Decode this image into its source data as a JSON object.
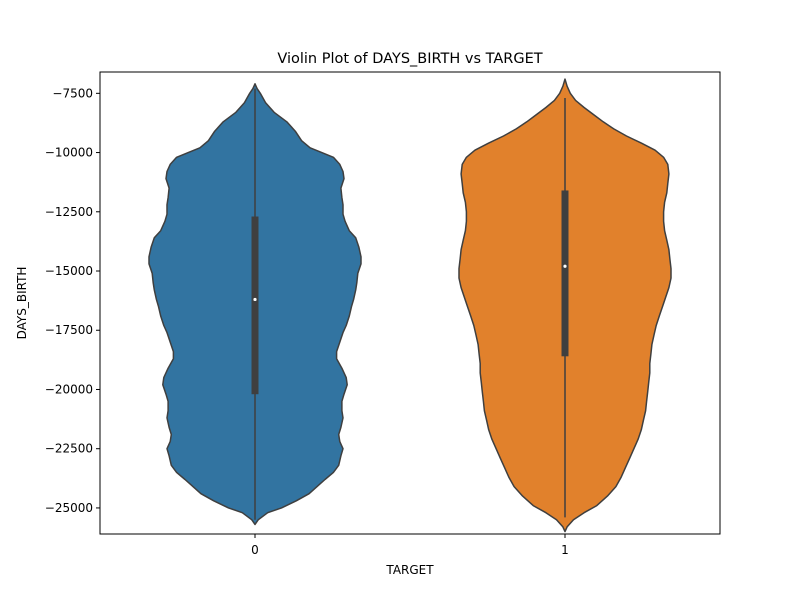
{
  "chart_data": {
    "type": "violin",
    "title": "Violin Plot of DAYS_BIRTH vs TARGET",
    "xlabel": "TARGET",
    "ylabel": "DAYS_BIRTH",
    "categories": [
      "0",
      "1"
    ],
    "ylim": [
      -26100,
      -6600
    ],
    "yticks": [
      -7500,
      -10000,
      -12500,
      -15000,
      -17500,
      -20000,
      -22500,
      -25000
    ],
    "ytick_labels": [
      "−7500",
      "−10000",
      "−12500",
      "−15000",
      "−17500",
      "−20000",
      "−22500",
      "−25000"
    ],
    "grid": false,
    "legend": false,
    "series": [
      {
        "category": "0",
        "color": "#3274a1",
        "min": -25500,
        "max": -7300,
        "q1": -20200,
        "median": -16200,
        "q3": -12700,
        "density": [
          [
            -25700,
            0.0
          ],
          [
            -25500,
            0.03
          ],
          [
            -25200,
            0.12
          ],
          [
            -25000,
            0.25
          ],
          [
            -24700,
            0.39
          ],
          [
            -24400,
            0.51
          ],
          [
            -24000,
            0.61
          ],
          [
            -23800,
            0.66
          ],
          [
            -23500,
            0.74
          ],
          [
            -23200,
            0.79
          ],
          [
            -22800,
            0.81
          ],
          [
            -22500,
            0.83
          ],
          [
            -22200,
            0.8
          ],
          [
            -21900,
            0.79
          ],
          [
            -21600,
            0.81
          ],
          [
            -21200,
            0.83
          ],
          [
            -20900,
            0.82
          ],
          [
            -20500,
            0.82
          ],
          [
            -20200,
            0.84
          ],
          [
            -19800,
            0.87
          ],
          [
            -19500,
            0.86
          ],
          [
            -19100,
            0.82
          ],
          [
            -18700,
            0.77
          ],
          [
            -18400,
            0.77
          ],
          [
            -18000,
            0.8
          ],
          [
            -17600,
            0.83
          ],
          [
            -17300,
            0.86
          ],
          [
            -16900,
            0.89
          ],
          [
            -16500,
            0.91
          ],
          [
            -16200,
            0.93
          ],
          [
            -15800,
            0.95
          ],
          [
            -15500,
            0.96
          ],
          [
            -15100,
            0.97
          ],
          [
            -14700,
            1.0
          ],
          [
            -14400,
            1.0
          ],
          [
            -14000,
            0.98
          ],
          [
            -13600,
            0.95
          ],
          [
            -13300,
            0.89
          ],
          [
            -12900,
            0.85
          ],
          [
            -12600,
            0.83
          ],
          [
            -12200,
            0.83
          ],
          [
            -11900,
            0.82
          ],
          [
            -11500,
            0.81
          ],
          [
            -11100,
            0.84
          ],
          [
            -10800,
            0.83
          ],
          [
            -10500,
            0.8
          ],
          [
            -10200,
            0.74
          ],
          [
            -10000,
            0.63
          ],
          [
            -9800,
            0.52
          ],
          [
            -9500,
            0.44
          ],
          [
            -9100,
            0.38
          ],
          [
            -8700,
            0.3
          ],
          [
            -8300,
            0.18
          ],
          [
            -7900,
            0.1
          ],
          [
            -7500,
            0.05
          ],
          [
            -7300,
            0.02
          ],
          [
            -7100,
            0.0
          ]
        ]
      },
      {
        "category": "1",
        "color": "#e1812c",
        "min": -25400,
        "max": -7700,
        "q1": -18600,
        "median": -14800,
        "q3": -11600,
        "density": [
          [
            -26000,
            0.0
          ],
          [
            -25800,
            0.02
          ],
          [
            -25500,
            0.08
          ],
          [
            -25200,
            0.18
          ],
          [
            -24900,
            0.3
          ],
          [
            -24500,
            0.4
          ],
          [
            -24100,
            0.48
          ],
          [
            -23700,
            0.53
          ],
          [
            -23300,
            0.57
          ],
          [
            -22900,
            0.61
          ],
          [
            -22500,
            0.65
          ],
          [
            -22100,
            0.69
          ],
          [
            -21700,
            0.72
          ],
          [
            -21300,
            0.74
          ],
          [
            -20900,
            0.76
          ],
          [
            -20500,
            0.77
          ],
          [
            -20100,
            0.78
          ],
          [
            -19700,
            0.79
          ],
          [
            -19300,
            0.8
          ],
          [
            -18900,
            0.8
          ],
          [
            -18500,
            0.81
          ],
          [
            -18100,
            0.82
          ],
          [
            -17700,
            0.84
          ],
          [
            -17300,
            0.86
          ],
          [
            -16900,
            0.89
          ],
          [
            -16500,
            0.92
          ],
          [
            -16100,
            0.95
          ],
          [
            -15700,
            0.98
          ],
          [
            -15300,
            1.0
          ],
          [
            -14900,
            1.0
          ],
          [
            -14500,
            0.99
          ],
          [
            -14100,
            0.98
          ],
          [
            -13700,
            0.96
          ],
          [
            -13300,
            0.94
          ],
          [
            -12900,
            0.93
          ],
          [
            -12500,
            0.93
          ],
          [
            -12100,
            0.94
          ],
          [
            -11700,
            0.96
          ],
          [
            -11300,
            0.97
          ],
          [
            -10900,
            0.98
          ],
          [
            -10500,
            0.97
          ],
          [
            -10200,
            0.93
          ],
          [
            -9900,
            0.85
          ],
          [
            -9600,
            0.72
          ],
          [
            -9300,
            0.58
          ],
          [
            -9000,
            0.46
          ],
          [
            -8700,
            0.36
          ],
          [
            -8400,
            0.27
          ],
          [
            -8100,
            0.18
          ],
          [
            -7800,
            0.1
          ],
          [
            -7500,
            0.05
          ],
          [
            -7200,
            0.02
          ],
          [
            -6900,
            0.0
          ]
        ]
      }
    ]
  }
}
